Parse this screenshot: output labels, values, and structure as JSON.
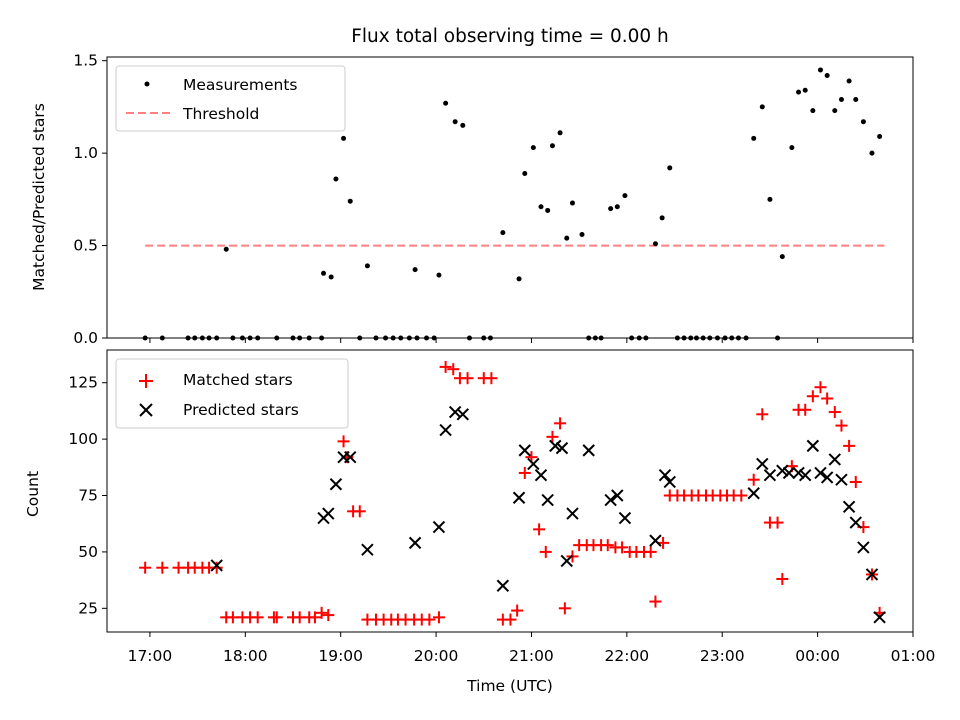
{
  "chart_data": [
    {
      "type": "scatter",
      "title": "Flux total observing time = 0.00 h",
      "xlabel": "",
      "ylabel": "Matched/Predicted stars",
      "x_unit": "hours since 17:00 UTC",
      "xlim": [
        -0.45,
        8.0
      ],
      "ylim": [
        0,
        1.52
      ],
      "yticks": [
        0.0,
        0.5,
        1.0,
        1.5
      ],
      "ytick_labels": [
        "0.0",
        "0.5",
        "1.0",
        "1.5"
      ],
      "legend": {
        "placement": "top-left",
        "entries": [
          "Measurements",
          "Threshold"
        ]
      },
      "threshold": {
        "name": "Threshold",
        "value": 0.5,
        "x_range": [
          -0.05,
          7.7
        ],
        "color": "#ff8080"
      },
      "series": [
        {
          "name": "Measurements",
          "color": "#000000",
          "points": [
            [
              -0.05,
              0.0
            ],
            [
              0.13,
              0.0
            ],
            [
              0.4,
              0.0
            ],
            [
              0.47,
              0.0
            ],
            [
              0.55,
              0.0
            ],
            [
              0.62,
              0.0
            ],
            [
              0.7,
              0.0
            ],
            [
              0.8,
              0.48
            ],
            [
              0.87,
              0.0
            ],
            [
              0.97,
              0.0
            ],
            [
              1.05,
              0.0
            ],
            [
              1.13,
              0.0
            ],
            [
              1.33,
              0.0
            ],
            [
              1.5,
              0.0
            ],
            [
              1.57,
              0.0
            ],
            [
              1.67,
              0.0
            ],
            [
              1.8,
              0.0
            ],
            [
              1.82,
              0.35
            ],
            [
              1.9,
              0.33
            ],
            [
              1.95,
              0.86
            ],
            [
              2.03,
              1.08
            ],
            [
              2.1,
              0.74
            ],
            [
              2.2,
              0.0
            ],
            [
              2.28,
              0.39
            ],
            [
              2.37,
              0.0
            ],
            [
              2.47,
              0.0
            ],
            [
              2.55,
              0.0
            ],
            [
              2.63,
              0.0
            ],
            [
              2.72,
              0.0
            ],
            [
              2.8,
              0.0
            ],
            [
              2.78,
              0.37
            ],
            [
              2.9,
              0.0
            ],
            [
              2.98,
              0.0
            ],
            [
              3.03,
              0.34
            ],
            [
              3.1,
              1.27
            ],
            [
              3.2,
              1.17
            ],
            [
              3.28,
              1.15
            ],
            [
              3.35,
              0.0
            ],
            [
              3.5,
              0.0
            ],
            [
              3.57,
              0.0
            ],
            [
              3.7,
              0.57
            ],
            [
              3.87,
              0.32
            ],
            [
              3.93,
              0.89
            ],
            [
              4.02,
              1.03
            ],
            [
              4.1,
              0.71
            ],
            [
              4.17,
              0.69
            ],
            [
              4.22,
              1.04
            ],
            [
              4.3,
              1.11
            ],
            [
              4.37,
              0.54
            ],
            [
              4.43,
              0.73
            ],
            [
              4.53,
              0.56
            ],
            [
              4.6,
              0.0
            ],
            [
              4.67,
              0.0
            ],
            [
              4.73,
              0.0
            ],
            [
              4.83,
              0.7
            ],
            [
              4.9,
              0.71
            ],
            [
              4.98,
              0.77
            ],
            [
              5.05,
              0.0
            ],
            [
              5.13,
              0.0
            ],
            [
              5.2,
              0.0
            ],
            [
              5.3,
              0.51
            ],
            [
              5.37,
              0.65
            ],
            [
              5.45,
              0.92
            ],
            [
              5.53,
              0.0
            ],
            [
              5.6,
              0.0
            ],
            [
              5.67,
              0.0
            ],
            [
              5.73,
              0.0
            ],
            [
              5.8,
              0.0
            ],
            [
              5.87,
              0.0
            ],
            [
              5.95,
              0.0
            ],
            [
              6.03,
              0.0
            ],
            [
              6.1,
              0.0
            ],
            [
              6.17,
              0.0
            ],
            [
              6.25,
              0.0
            ],
            [
              6.33,
              1.08
            ],
            [
              6.42,
              1.25
            ],
            [
              6.5,
              0.75
            ],
            [
              6.58,
              0.0
            ],
            [
              6.63,
              0.44
            ],
            [
              6.73,
              1.03
            ],
            [
              6.8,
              1.33
            ],
            [
              6.87,
              1.34
            ],
            [
              6.95,
              1.23
            ],
            [
              7.03,
              1.45
            ],
            [
              7.1,
              1.42
            ],
            [
              7.18,
              1.23
            ],
            [
              7.25,
              1.29
            ],
            [
              7.33,
              1.39
            ],
            [
              7.4,
              1.29
            ],
            [
              7.48,
              1.17
            ],
            [
              7.57,
              1.0
            ],
            [
              7.65,
              1.09
            ]
          ]
        }
      ]
    },
    {
      "type": "scatter",
      "title": "",
      "xlabel": "Time (UTC)",
      "ylabel": "Count",
      "x_unit": "hours since 17:00 UTC",
      "xlim": [
        -0.45,
        8.0
      ],
      "ylim": [
        14.5,
        139.5
      ],
      "xticks": [
        0,
        1,
        2,
        3,
        4,
        5,
        6,
        7,
        8
      ],
      "xtick_labels": [
        "17:00",
        "18:00",
        "19:00",
        "20:00",
        "21:00",
        "22:00",
        "23:00",
        "00:00",
        "01:00"
      ],
      "yticks": [
        25,
        50,
        75,
        100,
        125
      ],
      "ytick_labels": [
        "25",
        "50",
        "75",
        "100",
        "125"
      ],
      "legend": {
        "placement": "top-left",
        "entries": [
          "Matched stars",
          "Predicted stars"
        ]
      },
      "series": [
        {
          "name": "Matched stars",
          "marker": "plus",
          "color": "#ff0000",
          "points": [
            [
              -0.05,
              43
            ],
            [
              0.13,
              43
            ],
            [
              0.3,
              43
            ],
            [
              0.4,
              43
            ],
            [
              0.47,
              43
            ],
            [
              0.55,
              43
            ],
            [
              0.62,
              43
            ],
            [
              0.7,
              43
            ],
            [
              0.8,
              21
            ],
            [
              0.87,
              21
            ],
            [
              0.97,
              21
            ],
            [
              1.05,
              21
            ],
            [
              1.13,
              21
            ],
            [
              1.3,
              21
            ],
            [
              1.33,
              21
            ],
            [
              1.5,
              21
            ],
            [
              1.57,
              21
            ],
            [
              1.67,
              21
            ],
            [
              1.73,
              21
            ],
            [
              1.8,
              23
            ],
            [
              1.87,
              22
            ],
            [
              2.03,
              99
            ],
            [
              2.07,
              92
            ],
            [
              2.13,
              68
            ],
            [
              2.2,
              68
            ],
            [
              2.28,
              20
            ],
            [
              2.37,
              20
            ],
            [
              2.45,
              20
            ],
            [
              2.53,
              20
            ],
            [
              2.6,
              20
            ],
            [
              2.68,
              20
            ],
            [
              2.77,
              20
            ],
            [
              2.85,
              20
            ],
            [
              2.93,
              20
            ],
            [
              3.03,
              21
            ],
            [
              3.1,
              132
            ],
            [
              3.18,
              131
            ],
            [
              3.25,
              127
            ],
            [
              3.33,
              127
            ],
            [
              3.5,
              127
            ],
            [
              3.58,
              127
            ],
            [
              3.7,
              20
            ],
            [
              3.78,
              20
            ],
            [
              3.85,
              24
            ],
            [
              3.93,
              85
            ],
            [
              4.0,
              92
            ],
            [
              4.08,
              60
            ],
            [
              4.15,
              50
            ],
            [
              4.22,
              101
            ],
            [
              4.3,
              107
            ],
            [
              4.35,
              25
            ],
            [
              4.43,
              48
            ],
            [
              4.5,
              53
            ],
            [
              4.58,
              53
            ],
            [
              4.65,
              53
            ],
            [
              4.73,
              53
            ],
            [
              4.8,
              53
            ],
            [
              4.88,
              52
            ],
            [
              4.95,
              52
            ],
            [
              5.03,
              50
            ],
            [
              5.1,
              50
            ],
            [
              5.18,
              50
            ],
            [
              5.25,
              50
            ],
            [
              5.3,
              28
            ],
            [
              5.38,
              54
            ],
            [
              5.45,
              75
            ],
            [
              5.53,
              75
            ],
            [
              5.6,
              75
            ],
            [
              5.68,
              75
            ],
            [
              5.75,
              75
            ],
            [
              5.83,
              75
            ],
            [
              5.9,
              75
            ],
            [
              5.98,
              75
            ],
            [
              6.05,
              75
            ],
            [
              6.12,
              75
            ],
            [
              6.2,
              75
            ],
            [
              6.33,
              82
            ],
            [
              6.42,
              111
            ],
            [
              6.5,
              63
            ],
            [
              6.58,
              63
            ],
            [
              6.63,
              38
            ],
            [
              6.73,
              88
            ],
            [
              6.8,
              113
            ],
            [
              6.87,
              113
            ],
            [
              6.95,
              119
            ],
            [
              7.03,
              123
            ],
            [
              7.1,
              118
            ],
            [
              7.18,
              112
            ],
            [
              7.25,
              106
            ],
            [
              7.33,
              97
            ],
            [
              7.4,
              81
            ],
            [
              7.48,
              61
            ],
            [
              7.57,
              40
            ],
            [
              7.65,
              23
            ]
          ]
        },
        {
          "name": "Predicted stars",
          "marker": "x",
          "color": "#000000",
          "points": [
            [
              0.7,
              44
            ],
            [
              1.82,
              65
            ],
            [
              1.87,
              67
            ],
            [
              1.95,
              80
            ],
            [
              2.03,
              92
            ],
            [
              2.1,
              92
            ],
            [
              2.28,
              51
            ],
            [
              2.78,
              54
            ],
            [
              3.03,
              61
            ],
            [
              3.1,
              104
            ],
            [
              3.2,
              112
            ],
            [
              3.28,
              111
            ],
            [
              3.7,
              35
            ],
            [
              3.87,
              74
            ],
            [
              3.93,
              95
            ],
            [
              4.02,
              89
            ],
            [
              4.1,
              84
            ],
            [
              4.17,
              73
            ],
            [
              4.25,
              97
            ],
            [
              4.32,
              96
            ],
            [
              4.37,
              46
            ],
            [
              4.43,
              67
            ],
            [
              4.6,
              95
            ],
            [
              4.83,
              73
            ],
            [
              4.9,
              75
            ],
            [
              4.98,
              65
            ],
            [
              5.3,
              55
            ],
            [
              5.4,
              84
            ],
            [
              5.45,
              81
            ],
            [
              6.33,
              76
            ],
            [
              6.42,
              89
            ],
            [
              6.5,
              84
            ],
            [
              6.63,
              86
            ],
            [
              6.7,
              85
            ],
            [
              6.8,
              85
            ],
            [
              6.87,
              84
            ],
            [
              6.95,
              97
            ],
            [
              7.03,
              85
            ],
            [
              7.1,
              83
            ],
            [
              7.18,
              91
            ],
            [
              7.25,
              82
            ],
            [
              7.33,
              70
            ],
            [
              7.4,
              63
            ],
            [
              7.48,
              52
            ],
            [
              7.57,
              40
            ],
            [
              7.65,
              21
            ]
          ]
        }
      ]
    }
  ]
}
